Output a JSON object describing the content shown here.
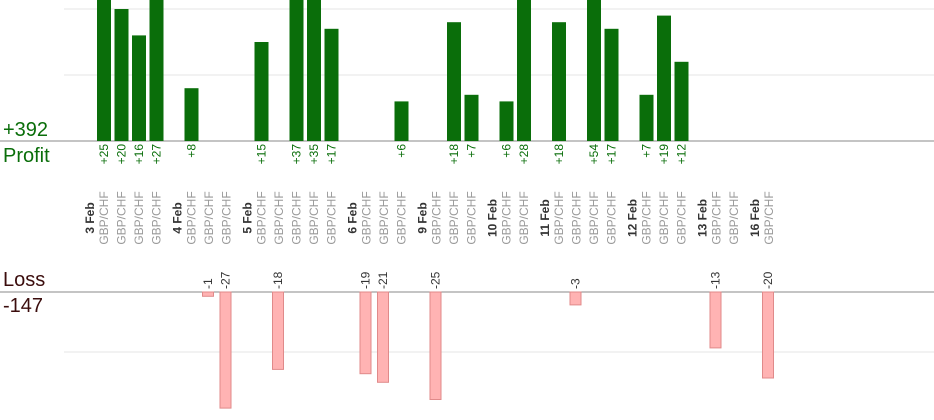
{
  "summary": {
    "profit_label": "Profit",
    "profit_total": "+392",
    "loss_label": "Loss",
    "loss_total": "-147"
  },
  "colors": {
    "profit": "#0a6e0a",
    "loss": "#ffb3b3",
    "loss_border": "#e08a8a",
    "grid": "#e6e6e6",
    "axis": "#888888"
  },
  "chart_data": {
    "type": "bar",
    "title": "",
    "grid": true,
    "profit_scale_max": 60,
    "loss_scale_max": 30,
    "groups": [
      {
        "date": "3 Feb",
        "trades": [
          {
            "pair": "GBP/CHF",
            "profit": 25,
            "label": "+25"
          },
          {
            "pair": "GBP/CHF",
            "profit": 20,
            "label": "+20"
          },
          {
            "pair": "GBP/CHF",
            "profit": 16,
            "label": "+16"
          },
          {
            "pair": "GBP/CHF",
            "profit": 27,
            "label": "+27"
          }
        ]
      },
      {
        "date": "4 Feb",
        "trades": [
          {
            "pair": "GBP/CHF",
            "profit": 8,
            "label": "+8"
          },
          {
            "pair": "GBP/CHF",
            "loss": 1,
            "label": "-1"
          },
          {
            "pair": "GBP/CHF",
            "loss": 27,
            "label": "-27"
          }
        ]
      },
      {
        "date": "5 Feb",
        "trades": [
          {
            "pair": "GBP/CHF",
            "profit": 15,
            "label": "+15"
          },
          {
            "pair": "GBP/CHF",
            "loss": 18,
            "label": "-18"
          },
          {
            "pair": "GBP/CHF",
            "profit": 37,
            "label": "+37"
          },
          {
            "pair": "GBP/CHF",
            "profit": 35,
            "label": "+35"
          },
          {
            "pair": "GBP/CHF",
            "profit": 17,
            "label": "+17"
          }
        ]
      },
      {
        "date": "6 Feb",
        "trades": [
          {
            "pair": "GBP/CHF",
            "loss": 19,
            "label": "-19"
          },
          {
            "pair": "GBP/CHF",
            "loss": 21,
            "label": "-21"
          },
          {
            "pair": "GBP/CHF",
            "profit": 6,
            "label": "+6"
          }
        ]
      },
      {
        "date": "9 Feb",
        "trades": [
          {
            "pair": "GBP/CHF",
            "loss": 25,
            "label": "-25"
          },
          {
            "pair": "GBP/CHF",
            "profit": 18,
            "label": "+18"
          },
          {
            "pair": "GBP/CHF",
            "profit": 7,
            "label": "+7"
          }
        ]
      },
      {
        "date": "10 Feb",
        "trades": [
          {
            "pair": "GBP/CHF",
            "profit": 6,
            "label": "+6"
          },
          {
            "pair": "GBP/CHF",
            "profit": 28,
            "label": "+28"
          }
        ]
      },
      {
        "date": "11 Feb",
        "trades": [
          {
            "pair": "GBP/CHF",
            "profit": 18,
            "label": "+18"
          },
          {
            "pair": "GBP/CHF",
            "loss": 3,
            "label": "-3"
          },
          {
            "pair": "GBP/CHF",
            "profit": 54,
            "label": "+54"
          },
          {
            "pair": "GBP/CHF",
            "profit": 17,
            "label": "+17"
          }
        ]
      },
      {
        "date": "12 Feb",
        "trades": [
          {
            "pair": "GBP/CHF",
            "profit": 7,
            "label": "+7"
          },
          {
            "pair": "GBP/CHF",
            "profit": 19,
            "label": "+19"
          },
          {
            "pair": "GBP/CHF",
            "profit": 12,
            "label": "+12"
          }
        ]
      },
      {
        "date": "13 Feb",
        "trades": [
          {
            "pair": "GBP/CHF",
            "loss": 13,
            "label": "-13"
          },
          {
            "pair": "GBP/CHF"
          }
        ]
      },
      {
        "date": "16 Feb",
        "trades": [
          {
            "pair": "GBP/CHF",
            "loss": 20,
            "label": "-20"
          }
        ]
      }
    ]
  }
}
